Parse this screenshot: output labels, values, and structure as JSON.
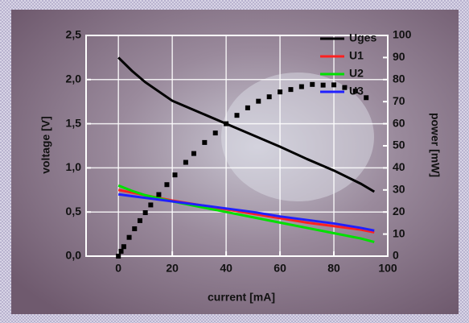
{
  "chart_data": {
    "type": "line",
    "xlabel": "current [mA]",
    "ylabel": "voltage [V]",
    "y2label": "power [mW]",
    "xlim": [
      -12,
      100
    ],
    "xticks": [
      0,
      20,
      40,
      60,
      80,
      100
    ],
    "ylim": [
      0,
      2.5
    ],
    "yticks": [
      {
        "value": 0,
        "label": "0,0"
      },
      {
        "value": 0.5,
        "label": "0,5"
      },
      {
        "value": 1,
        "label": "1,0"
      },
      {
        "value": 1.5,
        "label": "1,5"
      },
      {
        "value": 2,
        "label": "2,0"
      },
      {
        "value": 2.5,
        "label": "2,5"
      }
    ],
    "y2lim": [
      0,
      100
    ],
    "y2ticks": [
      0,
      10,
      20,
      30,
      40,
      50,
      60,
      70,
      80,
      90,
      100
    ],
    "grid": true,
    "legend": "top-right",
    "series": [
      {
        "name": "Uges",
        "color": "#000000",
        "x": [
          0,
          5,
          10,
          20,
          30,
          40,
          50,
          60,
          70,
          80,
          90,
          95
        ],
        "values": [
          2.25,
          2.1,
          1.97,
          1.76,
          1.63,
          1.5,
          1.37,
          1.24,
          1.1,
          0.97,
          0.82,
          0.73
        ]
      },
      {
        "name": "U1",
        "color": "#ff2020",
        "x": [
          0,
          5,
          10,
          20,
          30,
          40,
          50,
          60,
          70,
          80,
          90,
          95
        ],
        "values": [
          0.75,
          0.72,
          0.69,
          0.63,
          0.58,
          0.53,
          0.48,
          0.43,
          0.38,
          0.34,
          0.3,
          0.27
        ]
      },
      {
        "name": "U2",
        "color": "#00e000",
        "x": [
          0,
          5,
          10,
          20,
          30,
          40,
          50,
          60,
          70,
          80,
          90,
          95
        ],
        "values": [
          0.8,
          0.74,
          0.69,
          0.62,
          0.56,
          0.5,
          0.44,
          0.38,
          0.32,
          0.26,
          0.2,
          0.16
        ]
      },
      {
        "name": "U3",
        "color": "#2020ff",
        "x": [
          0,
          5,
          10,
          20,
          30,
          40,
          50,
          60,
          70,
          80,
          90,
          95
        ],
        "values": [
          0.7,
          0.68,
          0.66,
          0.62,
          0.58,
          0.54,
          0.5,
          0.45,
          0.41,
          0.37,
          0.32,
          0.29
        ]
      },
      {
        "color": "#000000",
        "axis": "y2",
        "marker": "square",
        "x": [
          0,
          1,
          2,
          4,
          6,
          8,
          10,
          12,
          15,
          18,
          21,
          25,
          28,
          32,
          36,
          40,
          44,
          48,
          52,
          56,
          60,
          64,
          68,
          72,
          76,
          80,
          84,
          88,
          92
        ],
        "values": [
          0,
          2.2,
          4.3,
          8.5,
          12.4,
          16.1,
          19.7,
          23.2,
          27.9,
          32.4,
          36.8,
          42.5,
          46.5,
          51.5,
          55.8,
          60,
          63.8,
          67.2,
          70.2,
          72.2,
          74.4,
          75.5,
          76.8,
          77.8,
          77.5,
          77.6,
          76.4,
          74.8,
          71.8
        ]
      }
    ]
  }
}
